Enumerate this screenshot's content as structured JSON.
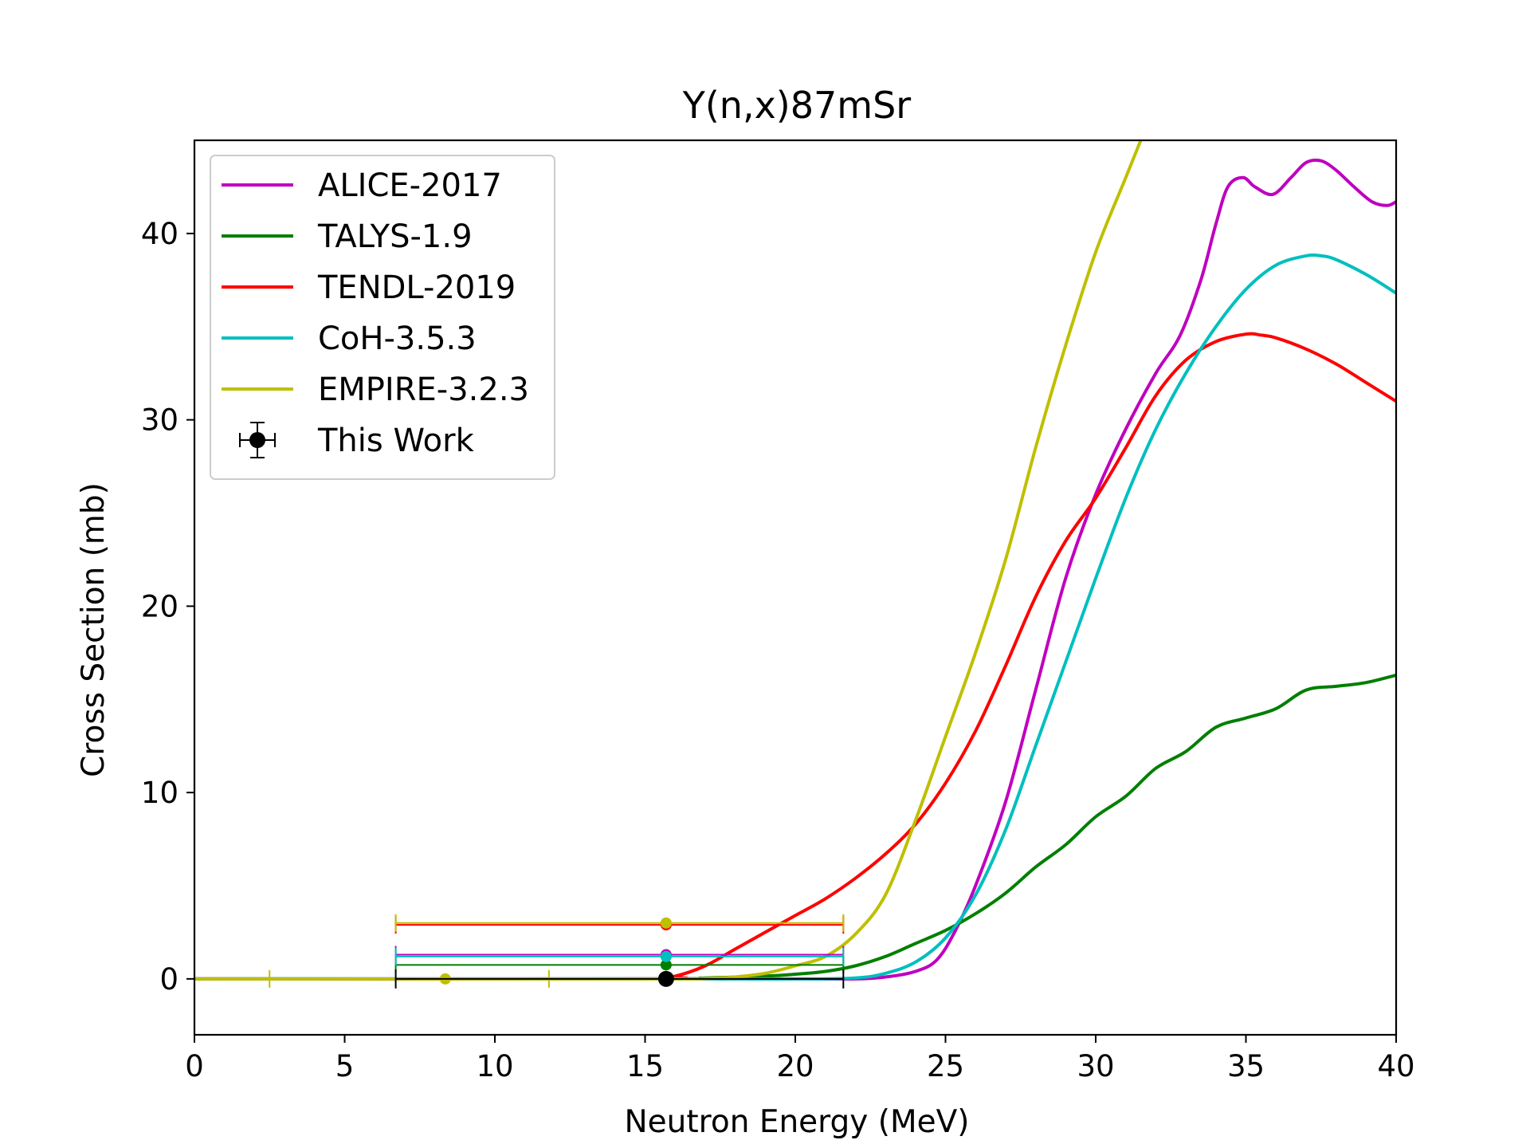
{
  "chart_data": {
    "type": "line",
    "title": "Y(n,x)87mSr",
    "xlabel": "Neutron Energy (MeV)",
    "ylabel": "Cross Section (mb)",
    "xlim": [
      0,
      40
    ],
    "ylim": [
      -3,
      45
    ],
    "xticks": [
      0,
      5,
      10,
      15,
      20,
      25,
      30,
      35,
      40
    ],
    "yticks": [
      0,
      10,
      20,
      30,
      40
    ],
    "grid": false,
    "legend_position": "upper-left",
    "series": [
      {
        "name": "ALICE-2017",
        "color": "#bf00bf",
        "points": [
          [
            0,
            0
          ],
          [
            15,
            0
          ],
          [
            20,
            0
          ],
          [
            22,
            0
          ],
          [
            23,
            0.1
          ],
          [
            24,
            0.4
          ],
          [
            24.7,
            1.0
          ],
          [
            25.3,
            2.5
          ],
          [
            26,
            5
          ],
          [
            27,
            9.5
          ],
          [
            28,
            15.5
          ],
          [
            29,
            21.5
          ],
          [
            30,
            26
          ],
          [
            31,
            29.5
          ],
          [
            32,
            32.5
          ],
          [
            32.8,
            34.5
          ],
          [
            33.5,
            37.5
          ],
          [
            34,
            40.5
          ],
          [
            34.4,
            42.5
          ],
          [
            34.9,
            43
          ],
          [
            35.3,
            42.5
          ],
          [
            35.9,
            42.1
          ],
          [
            36.5,
            43
          ],
          [
            37,
            43.8
          ],
          [
            37.5,
            43.9
          ],
          [
            38,
            43.4
          ],
          [
            38.6,
            42.5
          ],
          [
            39.2,
            41.7
          ],
          [
            39.7,
            41.5
          ],
          [
            40,
            41.7
          ]
        ]
      },
      {
        "name": "TALYS-1.9",
        "color": "#007f00",
        "points": [
          [
            0,
            0
          ],
          [
            15,
            0
          ],
          [
            17,
            0.05
          ],
          [
            19,
            0.15
          ],
          [
            20,
            0.25
          ],
          [
            21,
            0.4
          ],
          [
            22,
            0.7
          ],
          [
            23,
            1.2
          ],
          [
            24,
            1.9
          ],
          [
            25,
            2.6
          ],
          [
            26,
            3.5
          ],
          [
            27,
            4.6
          ],
          [
            28,
            6.0
          ],
          [
            29,
            7.2
          ],
          [
            30,
            8.7
          ],
          [
            31,
            9.8
          ],
          [
            32,
            11.3
          ],
          [
            33,
            12.2
          ],
          [
            34,
            13.5
          ],
          [
            35,
            14.0
          ],
          [
            36,
            14.5
          ],
          [
            37,
            15.5
          ],
          [
            38,
            15.7
          ],
          [
            39,
            15.9
          ],
          [
            40,
            16.3
          ]
        ]
      },
      {
        "name": "TENDL-2019",
        "color": "#ff0000",
        "points": [
          [
            0,
            0
          ],
          [
            15,
            0
          ],
          [
            16,
            0.15
          ],
          [
            17,
            0.7
          ],
          [
            18,
            1.6
          ],
          [
            19,
            2.5
          ],
          [
            20,
            3.4
          ],
          [
            21,
            4.3
          ],
          [
            22,
            5.4
          ],
          [
            23,
            6.7
          ],
          [
            24,
            8.3
          ],
          [
            25,
            10.5
          ],
          [
            26,
            13.3
          ],
          [
            27,
            16.8
          ],
          [
            28,
            20.5
          ],
          [
            29,
            23.5
          ],
          [
            30,
            25.8
          ],
          [
            31,
            28.5
          ],
          [
            32,
            31.3
          ],
          [
            33,
            33.2
          ],
          [
            34,
            34.2
          ],
          [
            35,
            34.6
          ],
          [
            35.5,
            34.55
          ],
          [
            36,
            34.4
          ],
          [
            37,
            33.8
          ],
          [
            38,
            33.0
          ],
          [
            39,
            32.0
          ],
          [
            40,
            31.0
          ]
        ]
      },
      {
        "name": "CoH-3.5.3",
        "color": "#00bfbf",
        "points": [
          [
            0,
            0
          ],
          [
            15,
            0
          ],
          [
            20,
            0
          ],
          [
            22,
            0.05
          ],
          [
            23,
            0.3
          ],
          [
            24,
            0.9
          ],
          [
            25,
            2.2
          ],
          [
            26,
            4.5
          ],
          [
            27,
            8.0
          ],
          [
            28,
            12.5
          ],
          [
            29,
            17.0
          ],
          [
            30,
            21.5
          ],
          [
            31,
            25.8
          ],
          [
            32,
            29.5
          ],
          [
            33,
            32.5
          ],
          [
            34,
            35.0
          ],
          [
            35,
            37.0
          ],
          [
            36,
            38.3
          ],
          [
            37,
            38.8
          ],
          [
            37.5,
            38.8
          ],
          [
            38,
            38.6
          ],
          [
            39,
            37.8
          ],
          [
            40,
            36.8
          ]
        ]
      },
      {
        "name": "EMPIRE-3.2.3",
        "color": "#bfbf00",
        "points": [
          [
            0,
            0
          ],
          [
            15,
            0
          ],
          [
            17,
            0.02
          ],
          [
            18,
            0.1
          ],
          [
            19,
            0.3
          ],
          [
            20,
            0.7
          ],
          [
            21,
            1.2
          ],
          [
            22,
            2.4
          ],
          [
            23,
            4.5
          ],
          [
            24,
            8.5
          ],
          [
            25,
            13.0
          ],
          [
            26,
            17.5
          ],
          [
            27,
            22.5
          ],
          [
            28,
            28.5
          ],
          [
            29,
            34.0
          ],
          [
            30,
            39.0
          ],
          [
            31,
            43.0
          ],
          [
            31.5,
            45.0
          ]
        ]
      }
    ],
    "measurements": [
      {
        "label": "This Work",
        "color": "#000000",
        "x": 15.7,
        "y": 0.0,
        "xerr": [
          6.7,
          21.6
        ]
      }
    ],
    "model_averages": [
      {
        "model": "ALICE-2017",
        "color": "#bf00bf",
        "x": 15.7,
        "y": 1.3,
        "xerr": [
          6.7,
          21.6
        ]
      },
      {
        "model": "TALYS-1.9",
        "color": "#007f00",
        "x": 15.7,
        "y": 0.75,
        "xerr": [
          6.7,
          21.6
        ]
      },
      {
        "model": "TENDL-2019",
        "color": "#ff0000",
        "x": 15.7,
        "y": 2.9,
        "xerr": [
          6.7,
          21.6
        ]
      },
      {
        "model": "CoH-3.5.3",
        "color": "#00bfbf",
        "x": 15.7,
        "y": 1.2,
        "xerr": [
          6.7,
          21.6
        ]
      },
      {
        "model": "EMPIRE-3.2.3",
        "color": "#bfbf00",
        "x": 15.7,
        "y": 3.0,
        "xerr": [
          6.7,
          21.6
        ]
      },
      {
        "model": "EMPIRE-3.2.3",
        "color": "#bfbf00",
        "x": 8.35,
        "y": 0.0,
        "xerr": [
          2.5,
          11.8
        ]
      }
    ],
    "legend": [
      "ALICE-2017",
      "TALYS-1.9",
      "TENDL-2019",
      "CoH-3.5.3",
      "EMPIRE-3.2.3",
      "This Work"
    ]
  }
}
